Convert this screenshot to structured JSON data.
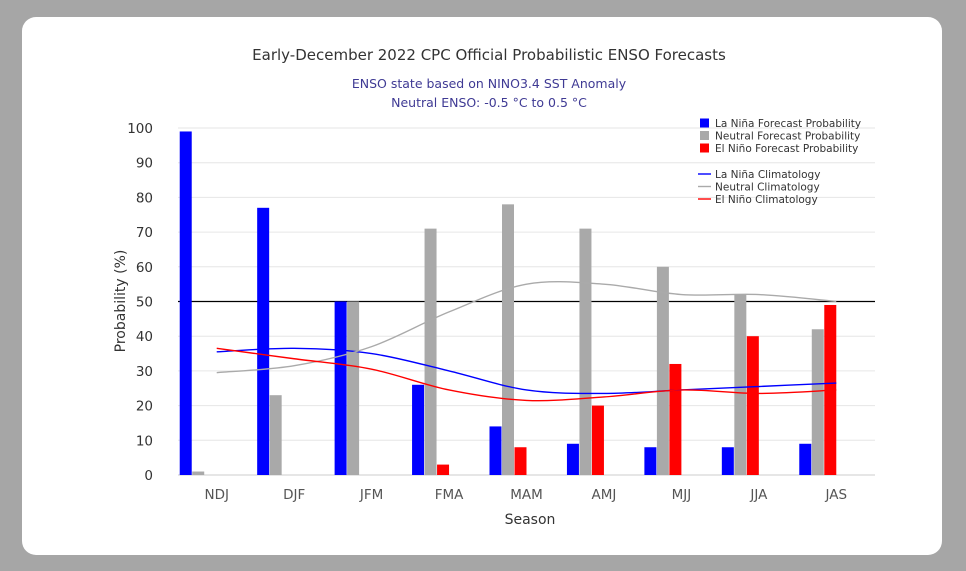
{
  "chart_data": {
    "type": "bar",
    "title": "Early-December 2022 CPC Official Probabilistic ENSO Forecasts",
    "subtitle_lines": [
      "ENSO state based on NINO3.4 SST Anomaly",
      "Neutral ENSO: -0.5 °C to 0.5 °C"
    ],
    "xlabel": "Season",
    "ylabel": "Probability (%)",
    "ylim": [
      0,
      100
    ],
    "yticks": [
      0,
      10,
      20,
      30,
      40,
      50,
      60,
      70,
      80,
      90,
      100
    ],
    "reference_line": 50,
    "categories": [
      "NDJ",
      "DJF",
      "JFM",
      "FMA",
      "MAM",
      "AMJ",
      "MJJ",
      "JJA",
      "JAS"
    ],
    "series": [
      {
        "name": "La Niña Forecast Probability",
        "color": "#0000ff",
        "values": [
          99,
          77,
          50,
          26,
          14,
          9,
          8,
          8,
          9
        ]
      },
      {
        "name": "Neutral Forecast Probability",
        "color": "#a9a9a9",
        "values": [
          1,
          23,
          50,
          71,
          78,
          71,
          60,
          52,
          42
        ]
      },
      {
        "name": "El Niño Forecast Probability",
        "color": "#ff0000",
        "values": [
          0,
          0,
          0,
          3,
          8,
          20,
          32,
          40,
          49
        ]
      }
    ],
    "climatology": [
      {
        "name": "La Niña Climatology",
        "color": "#0000ff",
        "values": [
          35.5,
          36.5,
          35,
          30,
          24.5,
          23.5,
          24.5,
          25.5,
          26.5
        ]
      },
      {
        "name": "Neutral Climatology",
        "color": "#aaaaaa",
        "values": [
          29.5,
          31.5,
          37,
          47,
          55,
          55,
          52,
          52,
          50
        ]
      },
      {
        "name": "El Niño Climatology",
        "color": "#ff0000",
        "values": [
          36.5,
          33.5,
          30.5,
          24.5,
          21.5,
          22.5,
          24.5,
          23.5,
          24.5
        ]
      }
    ],
    "grid": true,
    "legend_position": "top-right"
  }
}
